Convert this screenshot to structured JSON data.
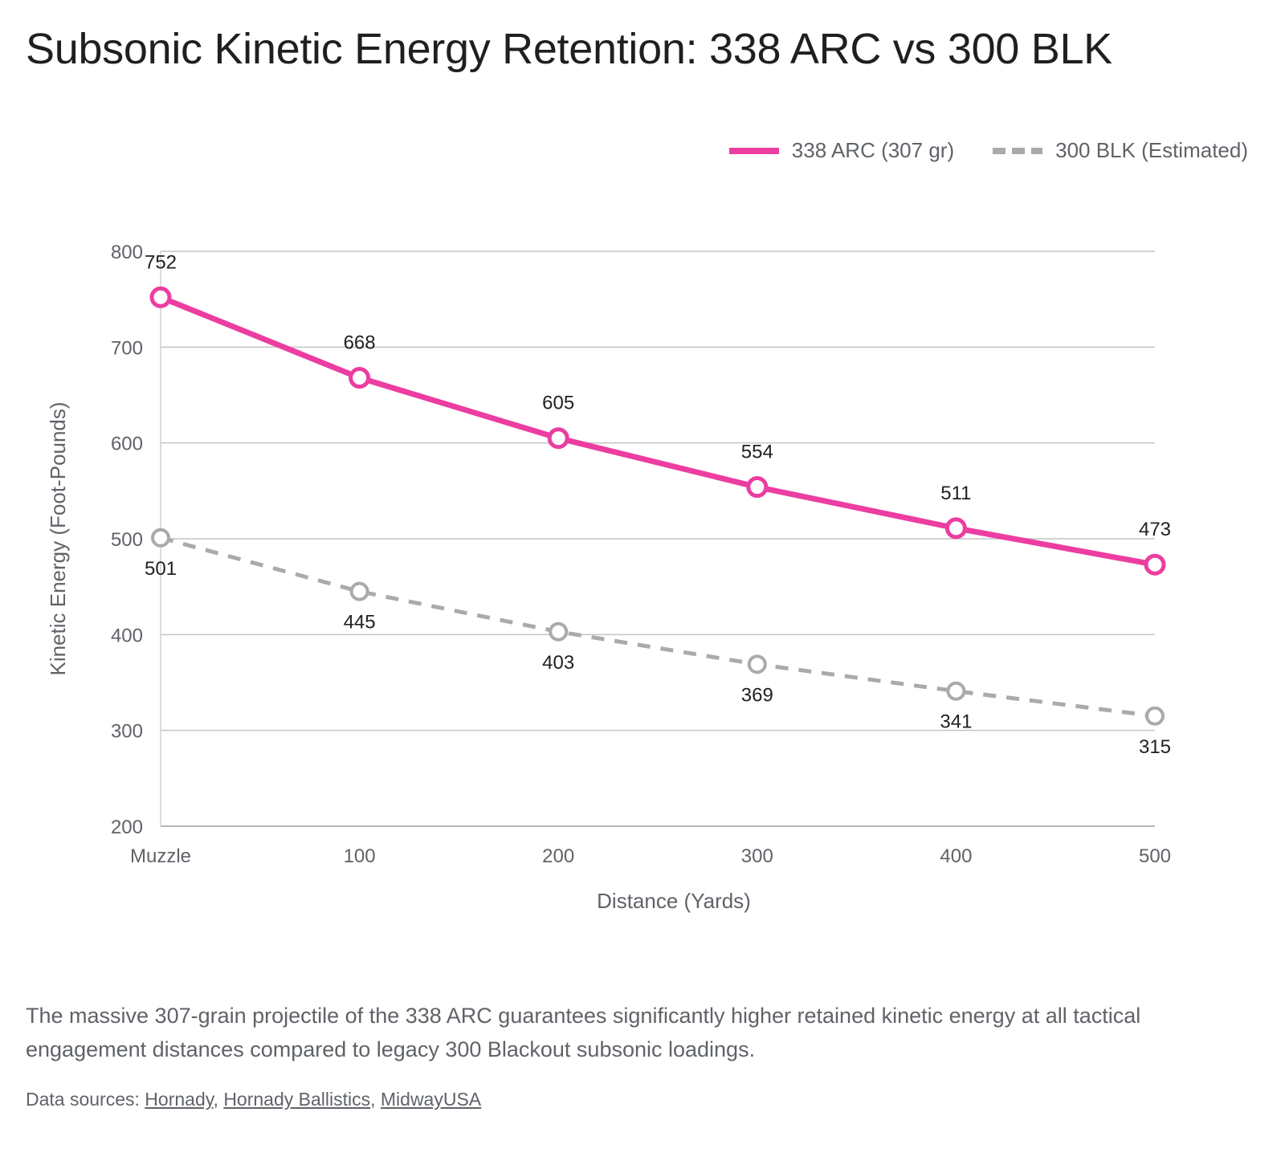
{
  "title": "Subsonic Kinetic Energy Retention: 338 ARC vs 300 BLK",
  "caption": "The massive 307-grain projectile of the 338 ARC guarantees significantly higher retained kinetic energy at all tactical engagement distances compared to legacy 300 Blackout subsonic loadings.",
  "sources": {
    "prefix": "Data sources: ",
    "links": [
      "Hornady",
      "Hornady Ballistics",
      "MidwayUSA"
    ],
    "separator": ", "
  },
  "chart_data": {
    "type": "line",
    "title": "",
    "xlabel": "Distance (Yards)",
    "ylabel": "Kinetic Energy (Foot-Pounds)",
    "categories": [
      "Muzzle",
      "100",
      "200",
      "300",
      "400",
      "500"
    ],
    "ylim": [
      200,
      800
    ],
    "yticks": [
      200,
      300,
      400,
      500,
      600,
      700,
      800
    ],
    "grid": true,
    "legend_position": "top-right",
    "series": [
      {
        "name": "338 ARC (307 gr)",
        "values": [
          752,
          668,
          605,
          554,
          511,
          473
        ],
        "color": "#ec3da1",
        "style": "solid",
        "label_position": "above"
      },
      {
        "name": "300 BLK (Estimated)",
        "values": [
          501,
          445,
          403,
          369,
          341,
          315
        ],
        "color": "#aaaaaa",
        "style": "dashed",
        "label_position": "below"
      }
    ]
  }
}
